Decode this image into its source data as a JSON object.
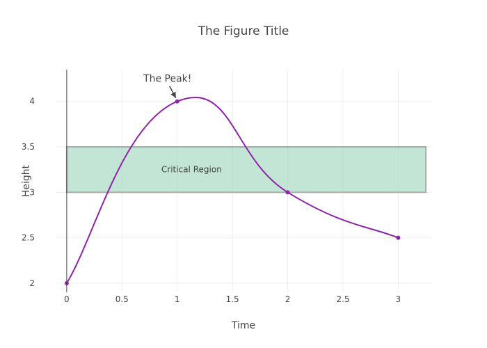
{
  "chart_data": {
    "type": "line",
    "title": "The Figure Title",
    "xlabel": "Time",
    "ylabel": "Height",
    "xlim": [
      -0.1,
      3.3
    ],
    "ylim": [
      1.9,
      4.35
    ],
    "grid": true,
    "line_shape": "spline",
    "x_ticks": [
      0,
      0.5,
      1,
      1.5,
      2,
      2.5,
      3
    ],
    "x_tick_labels": [
      "0",
      "0.5",
      "1",
      "1.5",
      "2",
      "2.5",
      "3"
    ],
    "y_ticks": [
      2,
      2.5,
      3,
      3.5,
      4
    ],
    "y_tick_labels": [
      "2",
      "2.5",
      "3",
      "3.5",
      "4"
    ],
    "series": [
      {
        "x": [
          0,
          1,
          2,
          3
        ],
        "y": [
          2,
          4,
          3,
          2.5
        ],
        "color": "#8e24aa"
      }
    ],
    "shapes": [
      {
        "type": "rect",
        "x0": 0,
        "x1": 3.25,
        "y0": 3,
        "y1": 3.5,
        "fill": "#8fd0b4",
        "stroke": "#aaaaaa",
        "label": "Critical Region"
      }
    ],
    "annotations": [
      {
        "text": "The Peak!",
        "x": 1,
        "y": 4,
        "arrow": true
      }
    ]
  }
}
